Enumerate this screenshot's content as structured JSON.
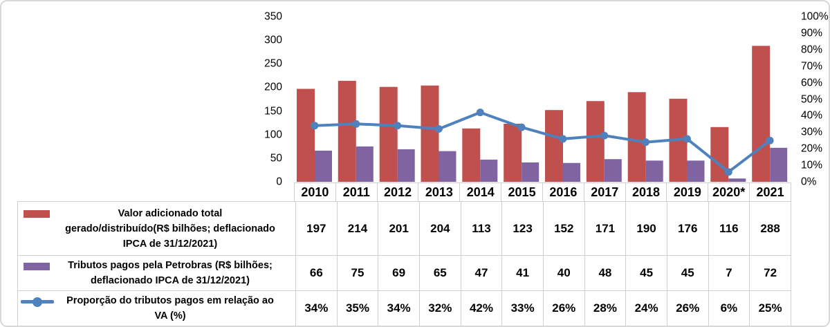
{
  "chart_data": {
    "type": "bar",
    "combo": "grouped-bars-plus-line",
    "title": "",
    "categories": [
      "2010",
      "2011",
      "2012",
      "2013",
      "2014",
      "2015",
      "2016",
      "2017",
      "2018",
      "2019",
      "2020*",
      "2021"
    ],
    "series": [
      {
        "name": "Valor adicionado total gerado/distribuído(R$ bilhões; deflacionado IPCA de 31/12/2021)",
        "label_display": "Valor adicionado total\ngerado/distribuído(R$ bilhões; deflacionado\nIPCA de 31/12/2021)",
        "type": "bar",
        "axis": "left",
        "color": "#C0504D",
        "values": [
          197,
          214,
          201,
          204,
          113,
          123,
          152,
          171,
          190,
          176,
          116,
          288
        ]
      },
      {
        "name": "Tributos pagos pela Petrobras (R$ bilhões; deflacionado IPCA de 31/12/2021)",
        "label_display": "Tributos pagos pela Petrobras (R$ bilhões;\ndeflacionado IPCA de 31/12/2021)",
        "type": "bar",
        "axis": "left",
        "color": "#8064A2",
        "values": [
          66,
          75,
          69,
          65,
          47,
          41,
          40,
          48,
          45,
          45,
          7,
          72
        ]
      },
      {
        "name": "Proporção do tributos pagos em relação ao VA (%)",
        "label_display": "Proporção do tributos pagos em relação ao\nVA (%)",
        "type": "line",
        "axis": "right",
        "color": "#4F81BD",
        "unit": "%",
        "values": [
          34,
          35,
          34,
          32,
          42,
          33,
          26,
          28,
          24,
          26,
          6,
          25
        ]
      }
    ],
    "left_axis": {
      "min": 0,
      "max": 350,
      "step": 50,
      "ticks": [
        "350",
        "300",
        "250",
        "200",
        "150",
        "100",
        "50",
        "0"
      ]
    },
    "right_axis": {
      "min": 0,
      "max": 100,
      "step": 10,
      "ticks": [
        "100%",
        "90%",
        "80%",
        "70%",
        "60%",
        "50%",
        "40%",
        "30%",
        "20%",
        "10%",
        "0%"
      ]
    },
    "grid": false,
    "legend_position": "left-table-column",
    "table_values": [
      [
        "197",
        "214",
        "201",
        "204",
        "113",
        "123",
        "152",
        "171",
        "190",
        "176",
        "116",
        "288"
      ],
      [
        "66",
        "75",
        "69",
        "65",
        "47",
        "41",
        "40",
        "48",
        "45",
        "45",
        "7",
        "72"
      ],
      [
        "34%",
        "35%",
        "34%",
        "32%",
        "42%",
        "33%",
        "26%",
        "28%",
        "24%",
        "26%",
        "6%",
        "25%"
      ]
    ]
  },
  "colors": {
    "bar_valor_adicionado": "#C0504D",
    "bar_tributos": "#8064A2",
    "line_proporcao": "#4F81BD",
    "table_border": "#CFCFCF",
    "frame_border": "#D8D8D8",
    "text": "#000000"
  }
}
